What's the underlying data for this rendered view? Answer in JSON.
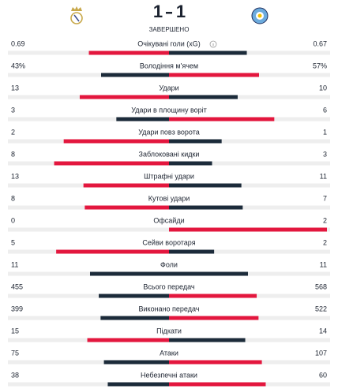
{
  "match": {
    "home_score": 1,
    "away_score": 1,
    "status": "ЗАВЕРШЕНО"
  },
  "stats": [
    {
      "label": "Очікувані голи (xG)",
      "home": 0.69,
      "away": 0.67
    },
    {
      "label": "Володіння м'ячем",
      "home": 43,
      "away": 57,
      "home_label": "43%",
      "away_label": "57%"
    },
    {
      "label": "Удари",
      "home": 13,
      "away": 10
    },
    {
      "label": "Удари в площину воріт",
      "home": 3,
      "away": 6
    },
    {
      "label": "Удари повз ворота",
      "home": 2,
      "away": 1
    },
    {
      "label": "Заблоковані кидки",
      "home": 8,
      "away": 3
    },
    {
      "label": "Штрафні удари",
      "home": 13,
      "away": 11
    },
    {
      "label": "Кутові удари",
      "home": 8,
      "away": 7
    },
    {
      "label": "Офсайди",
      "home": 0,
      "away": 2
    },
    {
      "label": "Сейви воротаря",
      "home": 5,
      "away": 2
    },
    {
      "label": "Фоли",
      "home": 11,
      "away": 11
    },
    {
      "label": "Всього передач",
      "home": 455,
      "away": 568
    },
    {
      "label": "Виконано передач",
      "home": 399,
      "away": 522
    },
    {
      "label": "Підкати",
      "home": 15,
      "away": 14
    },
    {
      "label": "Атаки",
      "home": 75,
      "away": 107
    },
    {
      "label": "Небезпечні атаки",
      "home": 38,
      "away": 60
    }
  ]
}
